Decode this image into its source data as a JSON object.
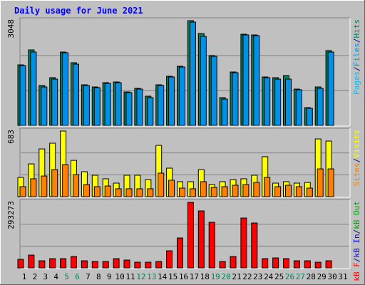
{
  "chart_data": {
    "type": "bar",
    "title": "Daily usage for June 2021",
    "separator": "/",
    "categories": [
      "1",
      "2",
      "3",
      "4",
      "5",
      "6",
      "7",
      "8",
      "9",
      "10",
      "11",
      "12",
      "13",
      "14",
      "15",
      "16",
      "17",
      "18",
      "19",
      "20",
      "21",
      "22",
      "23",
      "24",
      "25",
      "26",
      "27",
      "28",
      "29",
      "30",
      "31"
    ],
    "category_colors": [
      "#000000",
      "#000000",
      "#000000",
      "#000000",
      "#00805c",
      "#00805c",
      "#000000",
      "#000000",
      "#000000",
      "#000000",
      "#000000",
      "#00805c",
      "#00805c",
      "#000000",
      "#000000",
      "#000000",
      "#000000",
      "#000000",
      "#00805c",
      "#00805c",
      "#000000",
      "#000000",
      "#000000",
      "#000000",
      "#000000",
      "#00805c",
      "#00805c",
      "#000000",
      "#000000",
      "#000000",
      "#000000"
    ],
    "panels": [
      {
        "ylim": [
          0,
          3048
        ],
        "yticks": [
          3048
        ],
        "series": [
          {
            "name": "Pages",
            "color": "#00c0ff"
          },
          {
            "name": "Files",
            "color": "#0090e8",
            "values": [
              1741,
              2135,
              1119,
              1347,
              2114,
              1783,
              1161,
              1099,
              1223,
              1244,
              954,
              1057,
              808,
              1161,
              1410,
              1700,
              3006,
              2591,
              2011,
              767,
              1534,
              2633,
              2612,
              1389,
              1347,
              1347,
              1037,
              498,
              1078,
              2135,
              null
            ]
          },
          {
            "name": "Hits",
            "color": "#00805c",
            "values": [
              1762,
              2197,
              1161,
              1389,
              2135,
              1824,
              1182,
              1119,
              1244,
              1265,
              974,
              1078,
              850,
              1182,
              1430,
              1721,
              3048,
              2674,
              2032,
              808,
              1555,
              2653,
              2633,
              1410,
              1389,
              1451,
              1057,
              518,
              1119,
              2177,
              null
            ]
          }
        ]
      },
      {
        "ylim": [
          0,
          683
        ],
        "yticks": [
          683
        ],
        "series": [
          {
            "name": "Sites",
            "color": "#ff8000",
            "values": [
              104,
              186,
              215,
              282,
              334,
              230,
              126,
              104,
              111,
              82,
              82,
              82,
              82,
              245,
              171,
              89,
              82,
              156,
              96,
              104,
              119,
              126,
              148,
              200,
              104,
              119,
              104,
              89,
              289,
              289,
              null
            ]
          },
          {
            "name": "Visits",
            "color": "#ffff00",
            "values": [
              200,
              341,
              497,
              557,
              683,
              378,
              260,
              223,
              186,
              141,
              223,
              223,
              178,
              534,
              297,
              156,
              156,
              282,
              126,
              156,
              178,
              186,
              223,
              416,
              141,
              156,
              141,
              148,
              601,
              579,
              null
            ]
          }
        ]
      },
      {
        "ylim": [
          0,
          293273
        ],
        "yticks": [
          293273
        ],
        "series": [
          {
            "name": "kB F",
            "color": "#ff0000",
            "values": [
              38256,
              57384,
              31880,
              41444,
              41444,
              51008,
              31880,
              28692,
              28692,
              41444,
              35068,
              25504,
              25504,
              28692,
              76512,
              133896,
              293273,
              255040,
              204032,
              28692,
              51008,
              223160,
              200844,
              41444,
              44632,
              41444,
              31880,
              31880,
              25504,
              31880,
              null
            ]
          },
          {
            "name": "kB In",
            "color": "#0000ff"
          },
          {
            "name": "kB Out",
            "color": "#00a000"
          }
        ]
      }
    ]
  }
}
